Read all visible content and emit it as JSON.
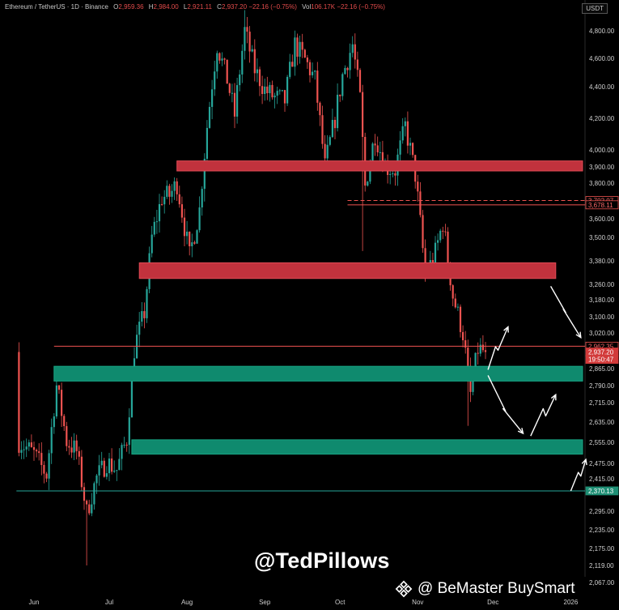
{
  "header": {
    "symbol": "Ethereum / TetherUS · 1D · Binance",
    "o_label": "O",
    "o": "2,959.36",
    "h_label": "H",
    "h": "2,984.00",
    "l_label": "L",
    "l": "2,921.11",
    "c_label": "C",
    "c": "2,937.20",
    "change": "−22.16 (−0.75%)",
    "vol_label": "Vol",
    "vol": "106.17K",
    "vol_change": "−22.16 (−0.75%)",
    "quote_currency": "USDT"
  },
  "watermark": "@TedPillows",
  "brand": {
    "icon": "binance-diamond-icon",
    "text": "@ BeMaster BuySmart"
  },
  "colors": {
    "background": "#000000",
    "up": "#26a69a",
    "down": "#ef5350",
    "resistance_zone": "#c1323d",
    "support_zone": "#0f8a6e",
    "current_price_line": "#ef5350",
    "support_line": "#26a69a",
    "arrows": "#ffffff"
  },
  "chart_data": {
    "type": "candlestick",
    "x_range": [
      "2025-05-25",
      "2026-01-10"
    ],
    "ylim": [
      2067,
      4900
    ],
    "y_ticks": [
      {
        "v": 4800,
        "label": "4,800.00"
      },
      {
        "v": 4600,
        "label": "4,600.00"
      },
      {
        "v": 4400,
        "label": "4,400.00"
      },
      {
        "v": 4200,
        "label": "4,200.00"
      },
      {
        "v": 4000,
        "label": "4,000.00"
      },
      {
        "v": 3900,
        "label": "3,900.00"
      },
      {
        "v": 3800,
        "label": "3,800.00"
      },
      {
        "v": 3600,
        "label": "3,600.00"
      },
      {
        "v": 3500,
        "label": "3,500.00"
      },
      {
        "v": 3380,
        "label": "3,380.00"
      },
      {
        "v": 3260,
        "label": "3,260.00"
      },
      {
        "v": 3180,
        "label": "3,180.00"
      },
      {
        "v": 3100,
        "label": "3,100.00"
      },
      {
        "v": 3020,
        "label": "3,020.00"
      },
      {
        "v": 2865,
        "label": "2,865.00"
      },
      {
        "v": 2790,
        "label": "2,790.00"
      },
      {
        "v": 2715,
        "label": "2,715.00"
      },
      {
        "v": 2635,
        "label": "2,635.00"
      },
      {
        "v": 2555,
        "label": "2,555.00"
      },
      {
        "v": 2475,
        "label": "2,475.00"
      },
      {
        "v": 2415,
        "label": "2,415.00"
      },
      {
        "v": 2295,
        "label": "2,295.00"
      },
      {
        "v": 2235,
        "label": "2,235.00"
      },
      {
        "v": 2175,
        "label": "2,175.00"
      },
      {
        "v": 2119,
        "label": "2,119.00"
      },
      {
        "v": 2067,
        "label": "2,067.00"
      }
    ],
    "x_ticks": [
      {
        "date": "2025-06-01",
        "label": "Jun"
      },
      {
        "date": "2025-07-01",
        "label": "Jul"
      },
      {
        "date": "2025-08-01",
        "label": "Aug"
      },
      {
        "date": "2025-09-01",
        "label": "Sep"
      },
      {
        "date": "2025-10-01",
        "label": "Oct"
      },
      {
        "date": "2025-11-01",
        "label": "Nov"
      },
      {
        "date": "2025-12-01",
        "label": "Dec"
      },
      {
        "date": "2026-01-01",
        "label": "2026"
      }
    ],
    "price_labels": [
      {
        "v": 3702.07,
        "text": "3,702.07",
        "style": "red-outline"
      },
      {
        "v": 3678.11,
        "text": "3,678.11",
        "style": "red-outline"
      },
      {
        "v": 2962.35,
        "text": "2,962.35",
        "style": "red-outline"
      },
      {
        "v": 2937.2,
        "text": "2,937.20",
        "style": "red-fill"
      },
      {
        "v": 2905,
        "text": "19:50:47",
        "style": "red-fill"
      },
      {
        "v": 2370.13,
        "text": "2,370.13",
        "style": "green-fill"
      }
    ],
    "zones": [
      {
        "kind": "resistance",
        "from": "2025-07-28",
        "to": "2026-01-07",
        "top": 3935,
        "bottom": 3875
      },
      {
        "kind": "resistance",
        "from": "2025-07-13",
        "to": "2025-12-26",
        "top": 3370,
        "bottom": 3290
      },
      {
        "kind": "support",
        "from": "2025-06-09",
        "to": "2026-01-07",
        "top": 2875,
        "bottom": 2810
      },
      {
        "kind": "support",
        "from": "2025-07-10",
        "to": "2026-01-07",
        "top": 2565,
        "bottom": 2510
      }
    ],
    "lines": [
      {
        "kind": "solid-red",
        "from": "2025-10-04",
        "to": "2026-01-07",
        "v": 3678.11
      },
      {
        "kind": "dashed-red",
        "from": "2025-10-04",
        "to": "2026-01-07",
        "v": 3702.07
      },
      {
        "kind": "solid-red",
        "from": "2025-06-09",
        "to": "2026-01-07",
        "v": 2962.35
      },
      {
        "kind": "solid-green",
        "from": "2025-05-25",
        "to": "2026-01-07",
        "v": 2370.13
      }
    ],
    "projection_arrows": [
      {
        "path": [
          [
            "2025-12-24",
            3250
          ],
          [
            "2025-12-30",
            3120
          ],
          [
            "2025-12-29",
            3135
          ],
          [
            "2026-01-05",
            3000
          ]
        ]
      },
      {
        "path": [
          [
            "2025-11-29",
            2860
          ],
          [
            "2025-12-02",
            2960
          ],
          [
            "2025-12-03",
            2945
          ],
          [
            "2025-12-07",
            3050
          ]
        ]
      },
      {
        "path": [
          [
            "2025-11-29",
            2835
          ],
          [
            "2025-12-06",
            2680
          ],
          [
            "2025-12-05",
            2690
          ],
          [
            "2025-12-13",
            2590
          ]
        ]
      },
      {
        "path": [
          [
            "2025-12-16",
            2580
          ],
          [
            "2025-12-21",
            2690
          ],
          [
            "2025-12-22",
            2660
          ],
          [
            "2025-12-26",
            2750
          ]
        ]
      },
      {
        "path": [
          [
            "2026-01-01",
            2370
          ],
          [
            "2026-01-04",
            2440
          ],
          [
            "2026-01-05",
            2425
          ],
          [
            "2026-01-07",
            2490
          ]
        ]
      }
    ],
    "anchors": [
      {
        "date": "2025-05-26",
        "close": 2560
      },
      {
        "date": "2025-06-01",
        "close": 2510
      },
      {
        "date": "2025-06-06",
        "close": 2430
      },
      {
        "date": "2025-06-10",
        "close": 2790
      },
      {
        "date": "2025-06-14",
        "close": 2560
      },
      {
        "date": "2025-06-18",
        "close": 2520
      },
      {
        "date": "2025-06-22",
        "close": 2290
      },
      {
        "date": "2025-06-26",
        "close": 2420
      },
      {
        "date": "2025-06-30",
        "close": 2480
      },
      {
        "date": "2025-07-04",
        "close": 2450
      },
      {
        "date": "2025-07-08",
        "close": 2570
      },
      {
        "date": "2025-07-11",
        "close": 2950
      },
      {
        "date": "2025-07-15",
        "close": 3120
      },
      {
        "date": "2025-07-18",
        "close": 3500
      },
      {
        "date": "2025-07-22",
        "close": 3720
      },
      {
        "date": "2025-07-25",
        "close": 3730
      },
      {
        "date": "2025-07-28",
        "close": 3800
      },
      {
        "date": "2025-08-02",
        "close": 3400
      },
      {
        "date": "2025-08-06",
        "close": 3650
      },
      {
        "date": "2025-08-09",
        "close": 4150
      },
      {
        "date": "2025-08-13",
        "close": 4700
      },
      {
        "date": "2025-08-17",
        "close": 4450
      },
      {
        "date": "2025-08-20",
        "close": 4220
      },
      {
        "date": "2025-08-24",
        "close": 4800
      },
      {
        "date": "2025-08-28",
        "close": 4520
      },
      {
        "date": "2025-09-01",
        "close": 4380
      },
      {
        "date": "2025-09-05",
        "close": 4330
      },
      {
        "date": "2025-09-09",
        "close": 4310
      },
      {
        "date": "2025-09-13",
        "close": 4700
      },
      {
        "date": "2025-09-17",
        "close": 4590
      },
      {
        "date": "2025-09-21",
        "close": 4450
      },
      {
        "date": "2025-09-25",
        "close": 3900
      },
      {
        "date": "2025-09-29",
        "close": 4200
      },
      {
        "date": "2025-10-02",
        "close": 4480
      },
      {
        "date": "2025-10-06",
        "close": 4700
      },
      {
        "date": "2025-10-09",
        "close": 4320
      },
      {
        "date": "2025-10-11",
        "close": 3780
      },
      {
        "date": "2025-10-15",
        "close": 4100
      },
      {
        "date": "2025-10-19",
        "close": 3900
      },
      {
        "date": "2025-10-23",
        "close": 3880
      },
      {
        "date": "2025-10-27",
        "close": 4150
      },
      {
        "date": "2025-10-31",
        "close": 3850
      },
      {
        "date": "2025-11-04",
        "close": 3300
      },
      {
        "date": "2025-11-08",
        "close": 3420
      },
      {
        "date": "2025-11-11",
        "close": 3580
      },
      {
        "date": "2025-11-15",
        "close": 3200
      },
      {
        "date": "2025-11-19",
        "close": 3020
      },
      {
        "date": "2025-11-22",
        "close": 2750
      },
      {
        "date": "2025-11-25",
        "close": 2950
      },
      {
        "date": "2025-11-28",
        "close": 2937.2
      }
    ]
  }
}
